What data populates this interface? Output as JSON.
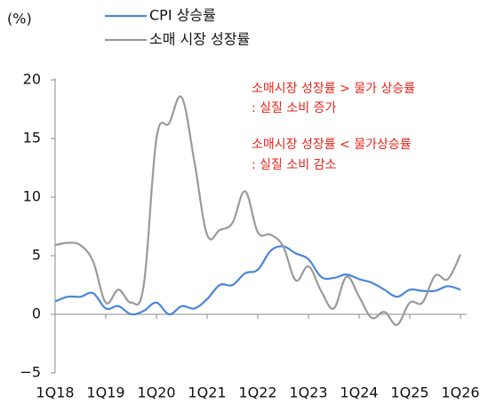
{
  "chart_data": {
    "type": "line",
    "y_unit": "(%)",
    "categories": [
      "1Q18",
      null,
      null,
      null,
      "1Q19",
      null,
      null,
      null,
      "1Q20",
      null,
      null,
      null,
      "1Q21",
      null,
      null,
      null,
      "1Q22",
      null,
      null,
      null,
      "1Q23",
      null,
      null,
      null,
      "1Q24",
      null,
      null,
      null,
      "1Q25",
      null,
      null,
      null,
      "1Q26"
    ],
    "series": [
      {
        "name": "CPI 상승률",
        "color": "#4a86d8",
        "values": [
          1.1,
          1.5,
          1.5,
          1.8,
          0.5,
          0.7,
          0.0,
          0.3,
          1.0,
          0.0,
          0.7,
          0.5,
          1.3,
          2.5,
          2.5,
          3.5,
          3.8,
          5.4,
          5.8,
          5.2,
          4.7,
          3.2,
          3.1,
          3.4,
          3.0,
          2.7,
          2.1,
          1.5,
          2.1,
          2.0,
          2.0,
          2.4,
          2.1
        ]
      },
      {
        "name": "소매 시장 성장률",
        "color": "#9a9a9a",
        "values": [
          5.9,
          6.1,
          5.9,
          4.5,
          1.0,
          2.1,
          1.0,
          2.5,
          15.0,
          16.3,
          18.5,
          13.0,
          6.8,
          7.2,
          7.8,
          10.5,
          7.0,
          6.8,
          5.8,
          2.9,
          4.1,
          2.0,
          0.5,
          3.2,
          1.5,
          -0.3,
          0.2,
          -0.9,
          1.0,
          1.0,
          3.3,
          3.0,
          5.1
        ]
      }
    ],
    "annotations": [
      "소매시장 성장률 > 물가 상승률",
      ": 실질 소비 증가",
      "소매시장 성장률 < 물가상승률",
      ": 실질 소비 감소"
    ],
    "ylim": [
      -5,
      20
    ],
    "yticks": [
      {
        "value": -5,
        "label": "−5"
      },
      0,
      5,
      10,
      15,
      20
    ],
    "legend": "top"
  }
}
